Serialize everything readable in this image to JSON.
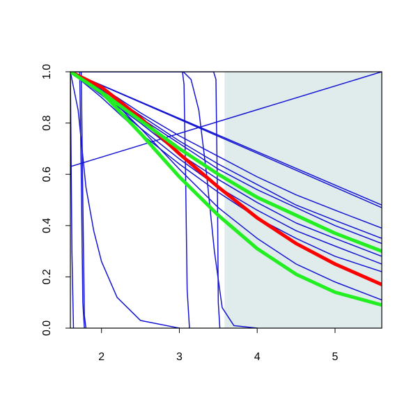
{
  "chart_data": {
    "type": "line",
    "xlim": [
      1.6,
      5.6
    ],
    "ylim": [
      0,
      1
    ],
    "xticks": [
      2,
      3,
      4,
      5
    ],
    "yticks": [
      {
        "value": 0,
        "label": "0.0"
      },
      0.2,
      0.4,
      0.6,
      0.8,
      {
        "value": 1,
        "label": "1.0"
      }
    ],
    "shade": {
      "xmin": 3.58,
      "xmax": 5.6,
      "color": "#e0ecec"
    },
    "series": [
      {
        "color": "#1414d2",
        "width": 1.5,
        "x": [
          1.6,
          5.6
        ],
        "values": [
          1,
          0.48
        ]
      },
      {
        "color": "#1414d2",
        "width": 1.5,
        "x": [
          1.6,
          5.6
        ],
        "values": [
          1,
          0.47
        ]
      },
      {
        "color": "#1414d2",
        "width": 1.5,
        "x": [
          1.6,
          5.6
        ],
        "values": [
          0.63,
          1
        ]
      },
      {
        "color": "#1414d2",
        "width": 1.5,
        "x": [
          1.6,
          2.0,
          2.5,
          3.0,
          3.5,
          4.0,
          4.5,
          5.0,
          5.6
        ],
        "values": [
          1,
          0.94,
          0.84,
          0.75,
          0.67,
          0.59,
          0.52,
          0.46,
          0.39
        ]
      },
      {
        "color": "#1414d2",
        "width": 1.5,
        "x": [
          1.6,
          2.0,
          2.5,
          3.0,
          3.5,
          4.0,
          4.5,
          5.0,
          5.6
        ],
        "values": [
          1,
          0.93,
          0.83,
          0.73,
          0.64,
          0.56,
          0.48,
          0.42,
          0.35
        ]
      },
      {
        "color": "#1414d2",
        "width": 1.5,
        "x": [
          1.6,
          2.0,
          2.5,
          3.0,
          3.5,
          4.0,
          4.5,
          5.0,
          5.6
        ],
        "values": [
          1,
          0.92,
          0.82,
          0.72,
          0.62,
          0.54,
          0.47,
          0.4,
          0.33
        ]
      },
      {
        "color": "#1414d2",
        "width": 1.5,
        "x": [
          1.6,
          2.0,
          2.5,
          3.0,
          3.5,
          4.0,
          4.5,
          5.0,
          5.6
        ],
        "values": [
          1,
          0.91,
          0.8,
          0.68,
          0.58,
          0.49,
          0.41,
          0.35,
          0.28
        ]
      },
      {
        "color": "#1414d2",
        "width": 1.5,
        "x": [
          1.6,
          2.0,
          2.5,
          3.0,
          3.5,
          4.0,
          4.5,
          5.0,
          5.6
        ],
        "values": [
          1,
          0.91,
          0.78,
          0.66,
          0.55,
          0.46,
          0.38,
          0.32,
          0.25
        ]
      },
      {
        "color": "#1414d2",
        "width": 1.5,
        "x": [
          1.6,
          2.0,
          2.5,
          3.0,
          3.5,
          4.0,
          4.5,
          5.0,
          5.6
        ],
        "values": [
          1,
          0.9,
          0.76,
          0.64,
          0.53,
          0.43,
          0.35,
          0.28,
          0.22
        ]
      },
      {
        "color": "#1414d2",
        "width": 1.5,
        "x": [
          1.6,
          2.0,
          2.5,
          3.0,
          3.5,
          4.0,
          4.5,
          5.0,
          5.6
        ],
        "values": [
          1,
          0.93,
          0.78,
          0.62,
          0.47,
          0.35,
          0.25,
          0.18,
          0.11
        ]
      },
      {
        "color": "#1414d2",
        "width": 1.5,
        "x": [
          1.6,
          1.62,
          1.64
        ],
        "values": [
          1,
          0.3,
          0
        ]
      },
      {
        "color": "#1414d2",
        "width": 1.5,
        "x": [
          1.6,
          1.72,
          1.74,
          1.76,
          1.78
        ],
        "values": [
          1,
          1,
          0.6,
          0.1,
          0
        ]
      },
      {
        "color": "#1414d2",
        "width": 1.5,
        "x": [
          1.6,
          1.74,
          1.76,
          1.78,
          1.8
        ],
        "values": [
          1,
          1,
          0.5,
          0.05,
          0
        ]
      },
      {
        "color": "#1414d2",
        "width": 1.5,
        "x": [
          1.6,
          1.7,
          1.8,
          1.9,
          2.0,
          2.2,
          2.5,
          3.0
        ],
        "values": [
          1,
          0.85,
          0.55,
          0.38,
          0.26,
          0.12,
          0.03,
          0
        ]
      },
      {
        "color": "#1414d2",
        "width": 1.5,
        "x": [
          1.6,
          3.04,
          3.06,
          3.08,
          3.1,
          3.13
        ],
        "values": [
          1,
          1,
          0.95,
          0.6,
          0.15,
          0
        ]
      },
      {
        "color": "#1414d2",
        "width": 1.5,
        "x": [
          1.6,
          3.44,
          3.47,
          3.49,
          3.5,
          3.52
        ],
        "values": [
          1,
          1,
          0.97,
          0.5,
          0.1,
          0
        ]
      },
      {
        "color": "#1414d2",
        "width": 1.5,
        "x": [
          1.6,
          3.05,
          3.15,
          3.25,
          3.35,
          3.45,
          3.55,
          3.7,
          4.0
        ],
        "values": [
          1,
          1,
          0.97,
          0.85,
          0.6,
          0.3,
          0.08,
          0.01,
          0
        ]
      },
      {
        "color": "#ff0000",
        "width": 5,
        "x": [
          1.6,
          2.0,
          2.5,
          3.0,
          3.5,
          4.0,
          4.5,
          5.0,
          5.6
        ],
        "values": [
          1,
          0.94,
          0.82,
          0.68,
          0.55,
          0.43,
          0.33,
          0.25,
          0.17
        ]
      },
      {
        "color": "#22ee22",
        "width": 5,
        "x": [
          1.6,
          2.0,
          2.5,
          3.0,
          3.5,
          4.0,
          4.5,
          5.0,
          5.6
        ],
        "values": [
          1,
          0.92,
          0.81,
          0.7,
          0.6,
          0.51,
          0.44,
          0.37,
          0.3
        ]
      },
      {
        "color": "#22ee22",
        "width": 5,
        "x": [
          1.6,
          2.0,
          2.5,
          3.0,
          3.5,
          4.0,
          4.5,
          5.0,
          5.6
        ],
        "values": [
          1,
          0.92,
          0.76,
          0.59,
          0.44,
          0.31,
          0.21,
          0.14,
          0.09
        ]
      }
    ]
  }
}
